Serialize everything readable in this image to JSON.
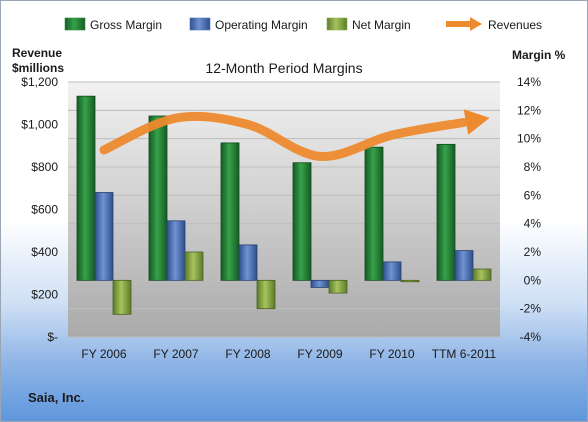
{
  "chart_data": {
    "type": "bar",
    "title": "12-Month Period Margins",
    "company": "Saia, Inc.",
    "left_axis_label_line1": "Revenue",
    "left_axis_label_line2": "$millions",
    "right_axis_label": "Margin %",
    "categories": [
      "FY 2006",
      "FY 2007",
      "FY 2008",
      "FY 2009",
      "FY 2010",
      "TTM 6-2011"
    ],
    "left_ticks": [
      "$-",
      "$200",
      "$400",
      "$600",
      "$800",
      "$1,000",
      "$1,200"
    ],
    "right_ticks": [
      "-4%",
      "-2%",
      "0%",
      "2%",
      "4%",
      "6%",
      "8%",
      "10%",
      "12%",
      "14%"
    ],
    "ylim_left": [
      0,
      1200
    ],
    "ylim_right": [
      -4,
      14
    ],
    "legend_position": "top",
    "series": [
      {
        "name": "Gross Margin",
        "axis": "right",
        "color": "#2e8b3e",
        "values": [
          13.0,
          11.6,
          9.7,
          8.3,
          9.4,
          9.6
        ]
      },
      {
        "name": "Operating Margin",
        "axis": "right",
        "color": "#4f73b8",
        "values": [
          6.2,
          4.2,
          2.5,
          -0.5,
          1.3,
          2.1
        ]
      },
      {
        "name": "Net Margin",
        "axis": "right",
        "color": "#8fad4c",
        "values": [
          -2.4,
          2.0,
          -2.0,
          -0.9,
          -0.1,
          0.8
        ]
      },
      {
        "name": "Revenues",
        "axis": "left",
        "type": "line",
        "color": "#ed8a2e",
        "values": [
          880,
          1030,
          1000,
          850,
          950,
          1010
        ]
      }
    ]
  }
}
